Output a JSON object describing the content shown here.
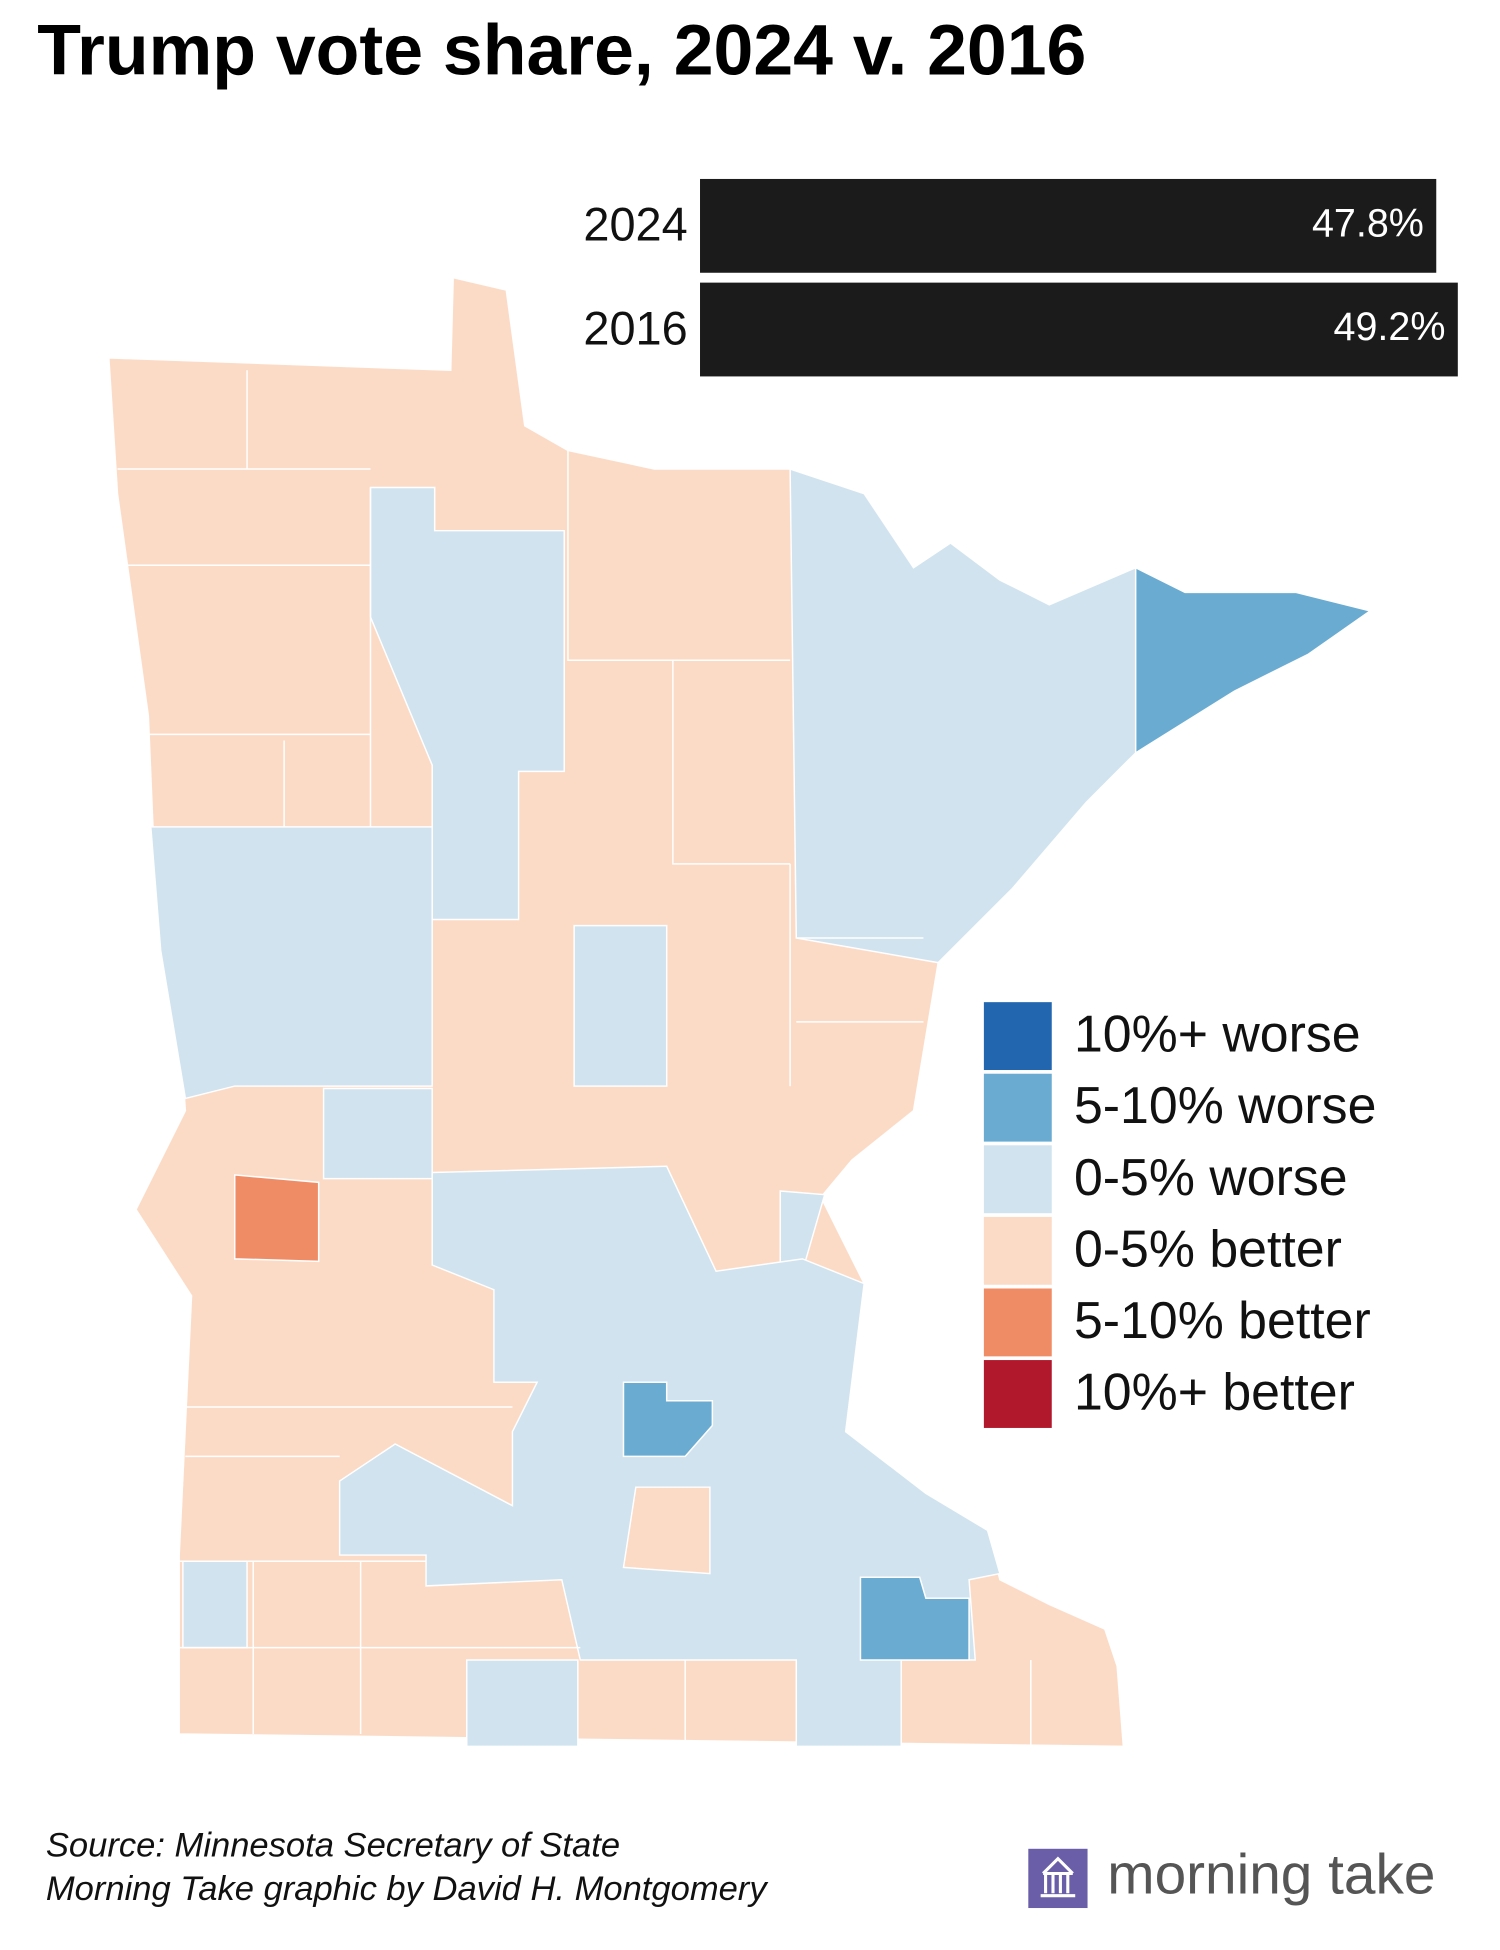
{
  "chart_data": {
    "type": "bar",
    "title": "Trump vote share, 2024 v. 2016",
    "categories": [
      "2024",
      "2016"
    ],
    "values": [
      47.8,
      49.2
    ],
    "value_labels": [
      "47.8%",
      "49.2%"
    ],
    "color": "#1b1b1b",
    "legend": [
      {
        "label": "10%+ worse",
        "color": "#2366b0"
      },
      {
        "label": "5-10% worse",
        "color": "#6aabd2"
      },
      {
        "label": "0-5% worse",
        "color": "#d0e3ef"
      },
      {
        "label": "0-5% better",
        "color": "#fcdbc6"
      },
      {
        "label": "5-10% better",
        "color": "#f08c65"
      },
      {
        "label": "10%+ better",
        "color": "#b2182b"
      }
    ]
  },
  "footer": {
    "source": "Source: Minnesota Secretary of State",
    "credit": "Morning Take graphic by David H. Montgomery",
    "brand": "morning take"
  }
}
